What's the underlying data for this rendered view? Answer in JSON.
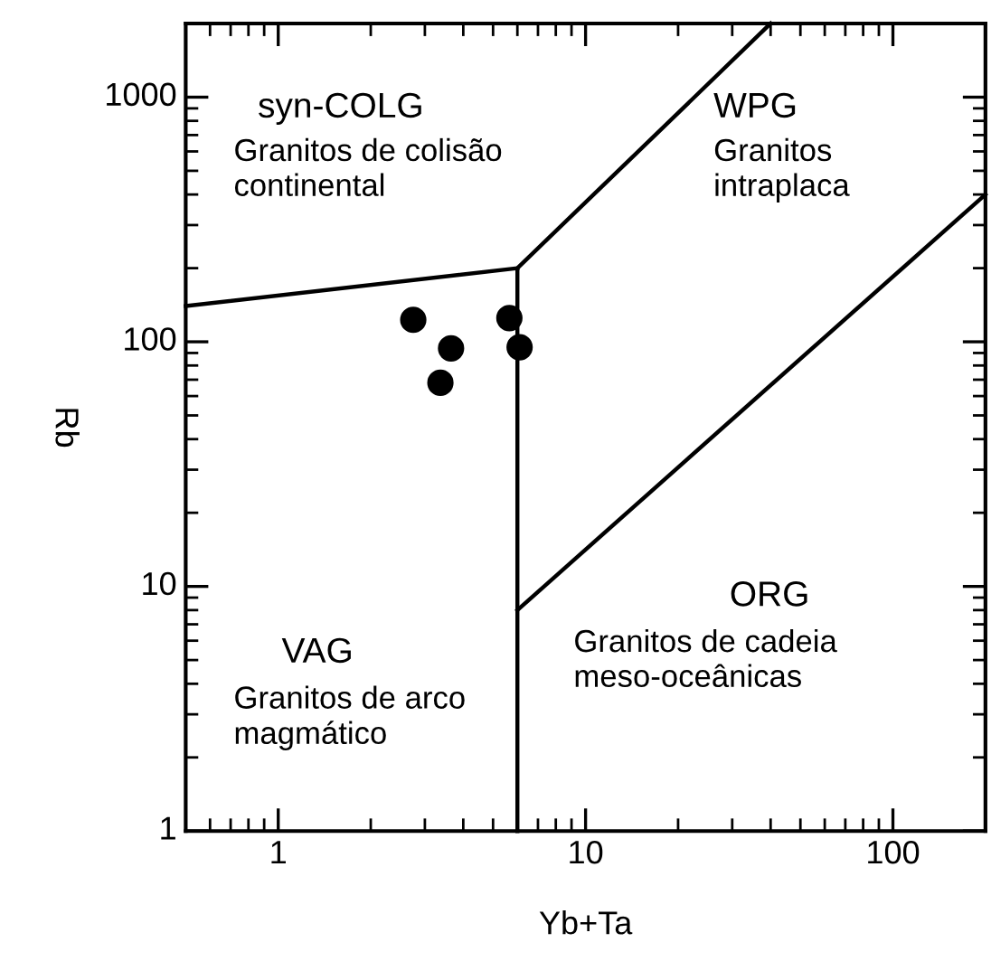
{
  "chart_data": {
    "type": "scatter",
    "xlabel": "Yb+Ta",
    "ylabel": "Rb",
    "log": "xy",
    "xlim": [
      0.5,
      200
    ],
    "ylim": [
      1,
      2000
    ],
    "xticks": [
      1,
      10,
      100
    ],
    "yticks": [
      1,
      10,
      100,
      1000
    ],
    "grid": false,
    "series": [
      {
        "color": "#000000",
        "marker": "circle",
        "x": [
          2.75,
          3.65,
          3.37,
          5.65,
          6.1
        ],
        "values": [
          123,
          94,
          68,
          125,
          95
        ]
      },
      {
        "type": "line",
        "color": "#000000",
        "line_style": "solid",
        "x": [
          6,
          6,
          40
        ],
        "values": [
          1,
          200,
          2000
        ]
      },
      {
        "type": "line",
        "color": "#000000",
        "line_style": "solid",
        "x": [
          0.5,
          6
        ],
        "values": [
          140,
          200
        ]
      },
      {
        "type": "line",
        "color": "#000000",
        "line_style": "solid",
        "x": [
          6,
          200
        ],
        "values": [
          8,
          400
        ]
      }
    ],
    "annotations": [
      "syn-COLG",
      "Granitos de colisão\ncontinental",
      "WPG",
      "Granitos\nintraplaca",
      "ORG",
      "Granitos de cadeia\nmeso-oceânicas",
      "VAG",
      "Granitos de arco\nmagmático"
    ]
  }
}
